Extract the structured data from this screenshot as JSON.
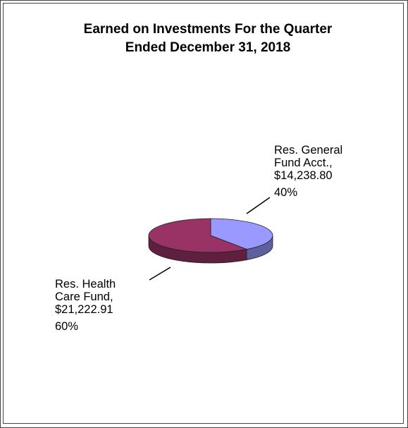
{
  "chart_data": {
    "type": "pie",
    "title": [
      "Earned on Investments For the Quarter",
      "Ended December 31, 2018"
    ],
    "slices": [
      {
        "label": [
          "Res. General",
          "Fund Acct.,",
          "$14,238.80"
        ],
        "value": 14238.8,
        "percent": "40%",
        "color": "#9999ff"
      },
      {
        "label": [
          "Res. Health",
          "Care Fund,",
          "$21,222.91"
        ],
        "value": 21222.91,
        "percent": "60%",
        "color": "#993366"
      }
    ]
  }
}
